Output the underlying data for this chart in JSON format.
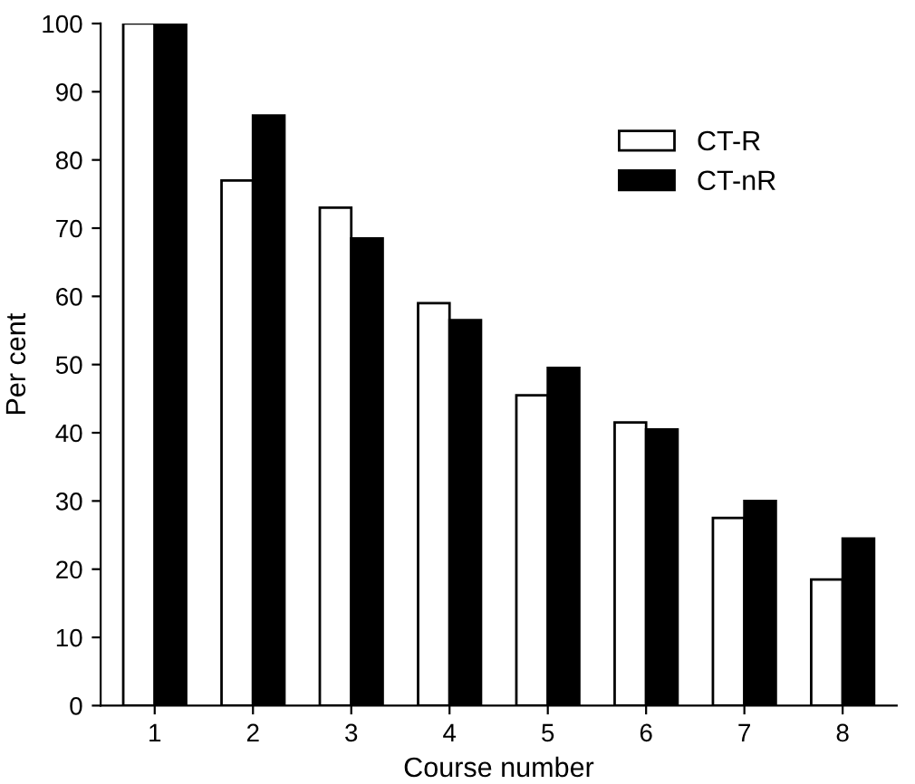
{
  "chart_data": {
    "type": "bar",
    "xlabel": "Course number",
    "ylabel": "Per cent",
    "categories": [
      "1",
      "2",
      "3",
      "4",
      "5",
      "6",
      "7",
      "8"
    ],
    "series": [
      {
        "name": "CT-R",
        "color": "#ffffff",
        "values": [
          100,
          77,
          73,
          59,
          45.5,
          41.5,
          27.5,
          18.5
        ]
      },
      {
        "name": "CT-nR",
        "color": "#000000",
        "values": [
          100,
          86.5,
          68.5,
          56.5,
          49.5,
          40.5,
          30,
          24.5
        ]
      }
    ],
    "ylim": [
      0,
      100
    ],
    "yticks": [
      0,
      10,
      20,
      30,
      40,
      50,
      60,
      70,
      80,
      90,
      100
    ],
    "grid": false,
    "legend": "top right"
  }
}
